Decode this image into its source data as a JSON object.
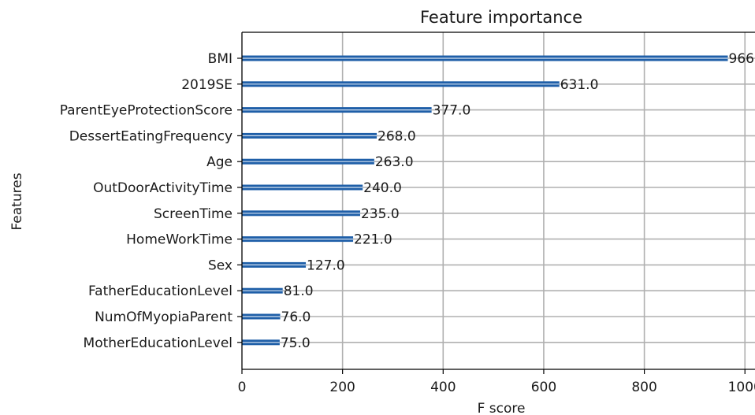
{
  "chart_data": {
    "type": "bar",
    "orientation": "horizontal",
    "title": "Feature importance",
    "xlabel": "F score",
    "ylabel": "Features",
    "xlim": [
      0,
      1020
    ],
    "xticks": [
      0,
      200,
      400,
      600,
      800,
      1000
    ],
    "grid": true,
    "bar_color": "#1f5fa8",
    "categories": [
      "BMI",
      "2019SE",
      "ParentEyeProtectionScore",
      "DessertEatingFrequency",
      "Age",
      "OutDoorActivityTime",
      "ScreenTime",
      "HomeWorkTime",
      "Sex",
      "FatherEducationLevel",
      "NumOfMyopiaParent",
      "MotherEducationLevel"
    ],
    "values": [
      966.0,
      631.0,
      377.0,
      268.0,
      263.0,
      240.0,
      235.0,
      221.0,
      127.0,
      81.0,
      76.0,
      75.0
    ],
    "data_labels": [
      "966.0",
      "631.0",
      "377.0",
      "268.0",
      "263.0",
      "240.0",
      "235.0",
      "221.0",
      "127.0",
      "81.0",
      "76.0",
      "75.0"
    ]
  }
}
